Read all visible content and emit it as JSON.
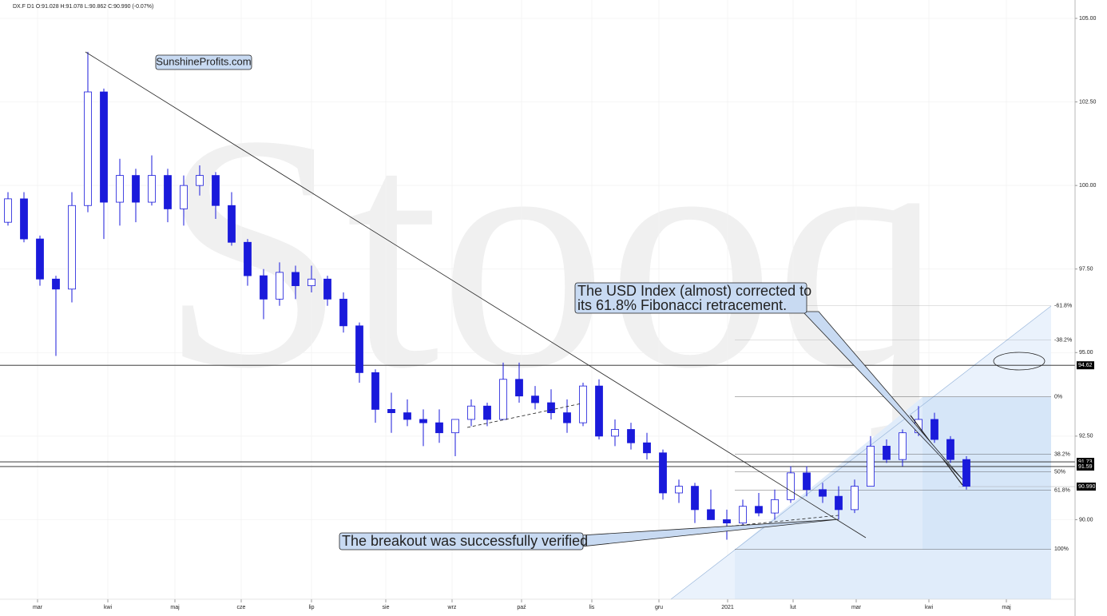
{
  "chart_data": {
    "type": "candlestick",
    "header": "DX.F  D1  O:91.028  H:91.078  L:90.862  C:90.990  (-0.07%)",
    "watermark": "Stooq",
    "color": "#1a1adb",
    "x": [
      0,
      1,
      2,
      3,
      4,
      5,
      6,
      7,
      8,
      9,
      10,
      11,
      12,
      13,
      14,
      15,
      16,
      17,
      18,
      19,
      20,
      21,
      22,
      23,
      24,
      25,
      26,
      27,
      28,
      29,
      30,
      31,
      32,
      33,
      34,
      35,
      36,
      37,
      38,
      39,
      40,
      41,
      42,
      43,
      44,
      45,
      46,
      47,
      48,
      49,
      50,
      51,
      52,
      53,
      54,
      55,
      56,
      57,
      58,
      59,
      60
    ],
    "open": [
      98.9,
      99.6,
      98.4,
      97.2,
      96.9,
      99.4,
      102.8,
      99.5,
      100.3,
      99.5,
      100.3,
      99.3,
      100.0,
      100.3,
      99.4,
      98.3,
      97.3,
      96.6,
      97.4,
      97.0,
      97.2,
      96.6,
      95.8,
      94.4,
      93.3,
      93.2,
      93.0,
      92.9,
      92.6,
      93.0,
      93.4,
      93.0,
      94.2,
      93.7,
      93.5,
      93.2,
      92.9,
      94.0,
      92.5,
      92.7,
      92.3,
      92.0,
      90.8,
      91.0,
      90.3,
      90.0,
      89.9,
      90.4,
      90.2,
      90.6,
      91.4,
      90.9,
      90.7,
      90.3,
      91.0,
      92.2,
      91.8,
      92.6,
      93.0,
      92.4,
      91.8
    ],
    "high": [
      99.8,
      99.8,
      98.5,
      97.3,
      99.8,
      104.0,
      102.9,
      100.8,
      100.5,
      100.9,
      100.5,
      100.3,
      100.6,
      100.4,
      99.8,
      98.4,
      97.5,
      97.7,
      97.6,
      97.6,
      97.3,
      96.8,
      95.9,
      94.5,
      93.8,
      93.6,
      93.3,
      93.3,
      93.0,
      93.6,
      93.5,
      94.7,
      94.7,
      94.0,
      93.9,
      93.6,
      94.1,
      94.2,
      93.0,
      92.9,
      92.6,
      92.1,
      91.2,
      91.1,
      90.9,
      90.3,
      90.6,
      90.8,
      90.9,
      91.6,
      91.6,
      91.1,
      91.0,
      91.2,
      92.5,
      92.4,
      92.7,
      93.4,
      93.2,
      92.5,
      91.9
    ],
    "low": [
      98.8,
      98.3,
      97.0,
      94.9,
      96.5,
      99.2,
      98.4,
      98.8,
      98.9,
      99.4,
      98.9,
      98.8,
      99.7,
      99.0,
      98.2,
      97.0,
      96.0,
      96.4,
      96.6,
      96.8,
      96.4,
      95.6,
      94.1,
      92.9,
      92.6,
      92.8,
      92.2,
      92.3,
      91.9,
      92.8,
      92.8,
      93.0,
      93.5,
      93.3,
      93.0,
      92.6,
      92.8,
      92.4,
      92.2,
      92.1,
      91.8,
      90.6,
      90.5,
      89.9,
      90.0,
      89.4,
      89.8,
      90.1,
      90.0,
      90.5,
      90.7,
      90.5,
      90.0,
      90.2,
      91.0,
      91.7,
      91.6,
      92.5,
      92.3,
      91.7,
      90.9
    ],
    "close": [
      99.6,
      98.4,
      97.2,
      96.9,
      99.4,
      102.8,
      99.5,
      100.3,
      99.5,
      100.3,
      99.3,
      100.0,
      100.3,
      99.4,
      98.3,
      97.3,
      96.6,
      97.4,
      97.0,
      97.2,
      96.6,
      95.8,
      94.4,
      93.3,
      93.2,
      93.0,
      92.9,
      92.6,
      93.0,
      93.4,
      93.0,
      94.2,
      93.7,
      93.5,
      93.2,
      92.9,
      94.0,
      92.5,
      92.7,
      92.3,
      92.0,
      90.8,
      91.0,
      90.3,
      90.0,
      89.9,
      90.4,
      90.2,
      90.6,
      91.4,
      90.9,
      90.7,
      90.3,
      91.0,
      92.2,
      91.8,
      92.6,
      93.0,
      92.4,
      91.8,
      91.0
    ],
    "xlim": [
      0,
      67.3
    ],
    "xticks": [
      {
        "value": 2.35,
        "label": "mar"
      },
      {
        "value": 6.75,
        "label": "kwi"
      },
      {
        "value": 10.95,
        "label": "maj"
      },
      {
        "value": 15.1,
        "label": "cze"
      },
      {
        "value": 19.5,
        "label": "lip"
      },
      {
        "value": 24.15,
        "label": "sie"
      },
      {
        "value": 28.3,
        "label": "wrz"
      },
      {
        "value": 32.65,
        "label": "paź"
      },
      {
        "value": 37.05,
        "label": "lis"
      },
      {
        "value": 41.25,
        "label": "gru"
      },
      {
        "value": 45.55,
        "label": "2021"
      },
      {
        "value": 49.65,
        "label": "lut"
      },
      {
        "value": 53.6,
        "label": "mar"
      },
      {
        "value": 58.15,
        "label": "kwi"
      },
      {
        "value": 63,
        "label": "maj"
      }
    ],
    "ylim": [
      87.62,
      105.55
    ],
    "yticks": [
      {
        "value": 105,
        "label": "105.00"
      },
      {
        "value": 102.5,
        "label": "102.50"
      },
      {
        "value": 100,
        "label": "100.00"
      },
      {
        "value": 97.5,
        "label": "97.50"
      },
      {
        "value": 95,
        "label": "95.00"
      },
      {
        "value": 92.5,
        "label": "92.50"
      },
      {
        "value": 90,
        "label": "90.00"
      }
    ],
    "grid": true,
    "levels": [
      94.62,
      91.73,
      91.59
    ],
    "last_price": {
      "value": 90.99,
      "label": "90.990"
    },
    "fibonacci": [
      {
        "label": "-61.8%",
        "price": 96.4
      },
      {
        "label": "-38.2%",
        "price": 95.375
      },
      {
        "label": "0%",
        "price": 93.68
      },
      {
        "label": "38.2%",
        "price": 91.96
      },
      {
        "label": "50%",
        "price": 91.43
      },
      {
        "label": "61.8%",
        "price": 90.88
      },
      {
        "label": "100%",
        "price": 89.12
      }
    ],
    "annotations": [
      "SunshineProfits.com",
      "The USD Index (almost) corrected to",
      "its 61.8% Fibonacci retracement.",
      "The breakout was successfully verified"
    ]
  }
}
